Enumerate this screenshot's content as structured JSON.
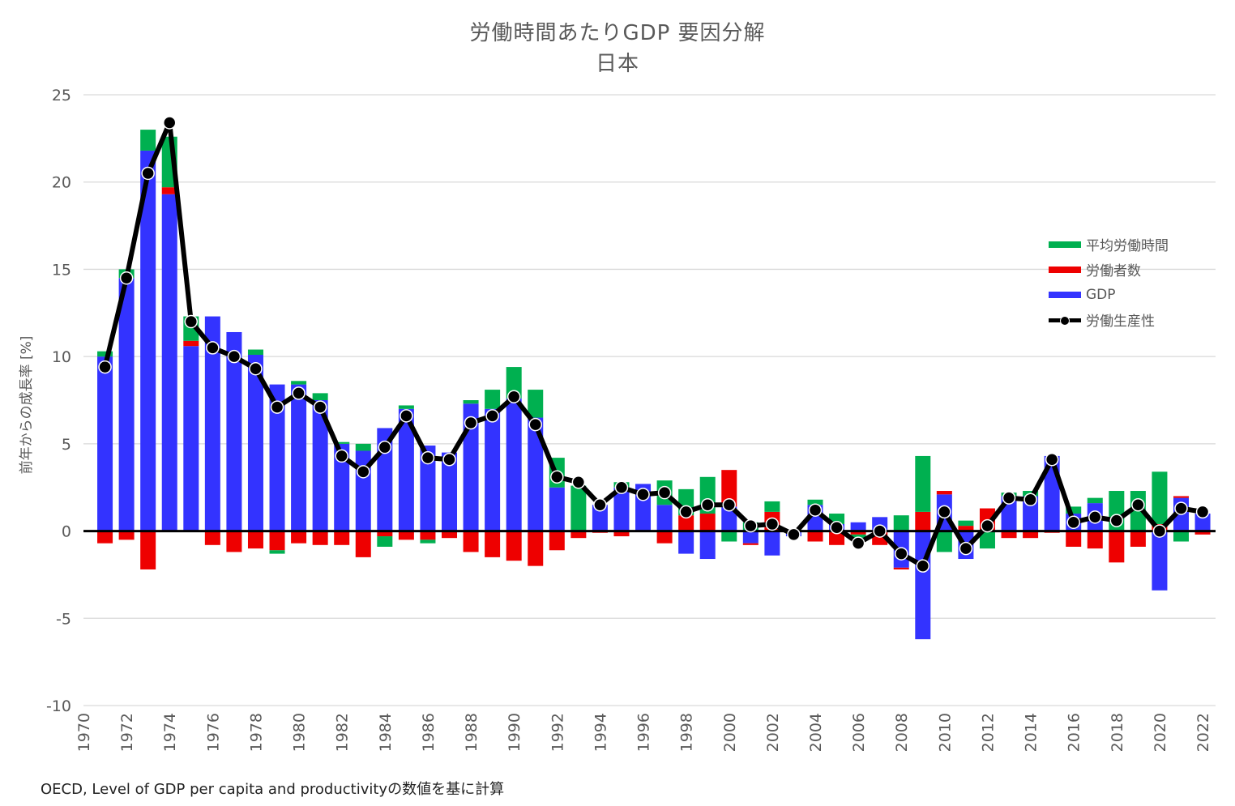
{
  "chart_data": {
    "type": "bar",
    "title": "労働時間あたりGDP 要因分解",
    "subtitle": "日本",
    "ylabel": "前年からの成長率 [%]",
    "source": "OECD, Level of GDP per capita and productivityの数値を基に計算",
    "ylim": [
      -10,
      25
    ],
    "yticks": [
      -10,
      -5,
      0,
      5,
      10,
      15,
      20,
      25
    ],
    "grid": true,
    "legend_position": "right",
    "colors": {
      "hours": "#00b050",
      "workers": "#ee0000",
      "gdp": "#3333ff",
      "productivity": "#000000"
    },
    "x": [
      1971,
      1972,
      1973,
      1974,
      1975,
      1976,
      1977,
      1978,
      1979,
      1980,
      1981,
      1982,
      1983,
      1984,
      1985,
      1986,
      1987,
      1988,
      1989,
      1990,
      1991,
      1992,
      1993,
      1994,
      1995,
      1996,
      1997,
      1998,
      1999,
      2000,
      2001,
      2002,
      2003,
      2004,
      2005,
      2006,
      2007,
      2008,
      2009,
      2010,
      2011,
      2012,
      2013,
      2014,
      2015,
      2016,
      2017,
      2018,
      2019,
      2020,
      2021,
      2022
    ],
    "xticks": [
      1970,
      1972,
      1974,
      1976,
      1978,
      1980,
      1982,
      1984,
      1986,
      1988,
      1990,
      1992,
      1994,
      1996,
      1998,
      2000,
      2002,
      2004,
      2006,
      2008,
      2010,
      2012,
      2014,
      2016,
      2018,
      2020,
      2022
    ],
    "series": [
      {
        "name": "平均労働時間",
        "values": [
          0.3,
          0.5,
          1.2,
          2.9,
          1.4,
          0.0,
          0.0,
          0.3,
          -0.2,
          0.2,
          0.4,
          0.1,
          0.4,
          -0.6,
          0.2,
          -0.2,
          0.0,
          0.2,
          1.1,
          1.8,
          1.6,
          1.7,
          2.6,
          0.0,
          0.3,
          0.0,
          1.4,
          1.5,
          2.1,
          -0.6,
          0.5,
          0.6,
          0.0,
          0.3,
          0.6,
          -0.3,
          0.0,
          0.9,
          3.2,
          -1.2,
          0.3,
          -1.0,
          0.2,
          0.3,
          0.0,
          0.4,
          0.3,
          2.3,
          2.3,
          3.0,
          -0.6,
          0.0
        ]
      },
      {
        "name": "労働者数",
        "values": [
          -0.7,
          -0.5,
          -2.2,
          0.4,
          0.3,
          -0.8,
          -1.2,
          -1.0,
          -1.1,
          -0.7,
          -0.8,
          -0.8,
          -1.5,
          -0.3,
          -0.5,
          -0.5,
          -0.4,
          -1.2,
          -1.5,
          -1.7,
          -2.0,
          -1.1,
          -0.4,
          -0.1,
          -0.3,
          0.0,
          -0.7,
          0.9,
          1.0,
          2.1,
          -0.1,
          1.1,
          0.0,
          -0.6,
          -0.8,
          -0.2,
          -0.8,
          -0.1,
          1.1,
          0.2,
          0.3,
          1.3,
          -0.4,
          -0.4,
          -0.1,
          -0.9,
          -1.0,
          -1.8,
          -0.9,
          0.4,
          0.1,
          -0.2
        ]
      },
      {
        "name": "GDP",
        "values": [
          10.0,
          14.5,
          21.8,
          19.3,
          10.6,
          12.3,
          11.4,
          10.1,
          8.4,
          8.4,
          7.5,
          5.0,
          4.6,
          5.9,
          7.0,
          4.9,
          4.5,
          7.3,
          7.0,
          7.6,
          6.5,
          2.5,
          0.0,
          1.5,
          2.5,
          2.7,
          1.5,
          -1.3,
          -1.6,
          1.4,
          -0.7,
          -1.4,
          -0.3,
          1.5,
          0.4,
          0.5,
          0.8,
          -2.1,
          -6.2,
          2.1,
          -1.6,
          0.0,
          2.0,
          2.0,
          4.3,
          1.0,
          1.6,
          0.0,
          0.0,
          -3.4,
          1.9,
          1.0
        ]
      },
      {
        "name": "労働生産性",
        "type": "line",
        "values": [
          9.4,
          14.5,
          20.5,
          23.4,
          12.0,
          10.5,
          10.0,
          9.3,
          7.1,
          7.9,
          7.1,
          4.3,
          3.4,
          4.8,
          6.6,
          4.2,
          4.1,
          6.2,
          6.6,
          7.7,
          6.1,
          3.1,
          2.8,
          1.5,
          2.5,
          2.1,
          2.2,
          1.1,
          1.5,
          1.5,
          0.3,
          0.4,
          -0.2,
          1.2,
          0.2,
          -0.7,
          0.0,
          -1.3,
          -2.0,
          1.1,
          -1.0,
          0.3,
          1.9,
          1.8,
          4.1,
          0.5,
          0.8,
          0.6,
          1.5,
          0.0,
          1.3,
          1.1
        ]
      }
    ]
  }
}
